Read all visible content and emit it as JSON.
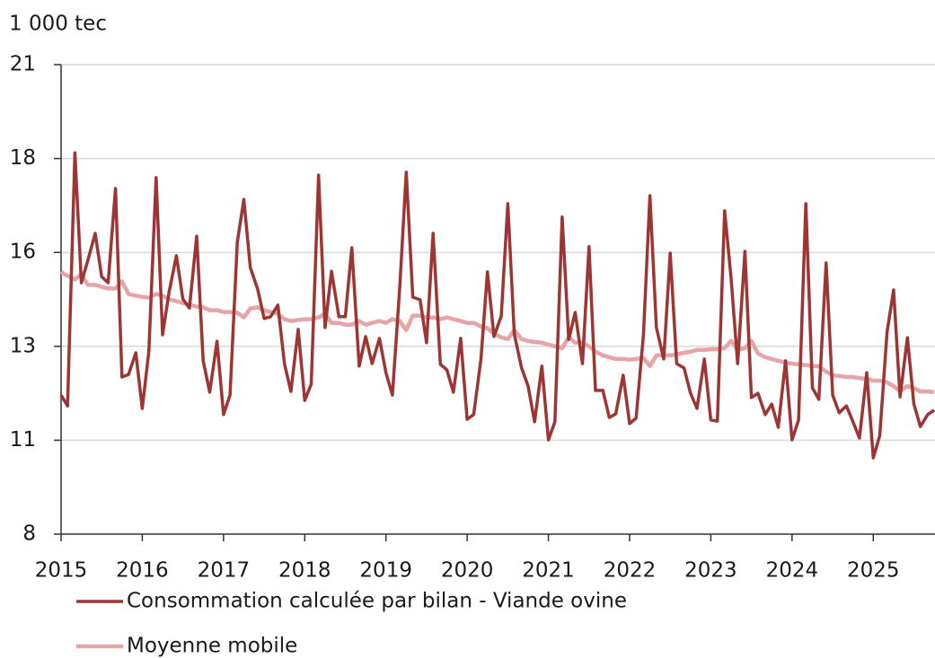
{
  "chart_data": {
    "type": "line",
    "ylabel": "1 000 tec",
    "x": [
      2015.0,
      2015.08,
      2015.17,
      2015.25,
      2015.33,
      2015.42,
      2015.5,
      2015.58,
      2015.67,
      2015.75,
      2015.83,
      2015.92,
      2016.0,
      2016.08,
      2016.17,
      2016.25,
      2016.33,
      2016.42,
      2016.5,
      2016.58,
      2016.67,
      2016.75,
      2016.83,
      2016.92,
      2017.0,
      2017.08,
      2017.17,
      2017.25,
      2017.33,
      2017.42,
      2017.5,
      2017.58,
      2017.67,
      2017.75,
      2017.83,
      2017.92,
      2018.0,
      2018.08,
      2018.17,
      2018.25,
      2018.33,
      2018.42,
      2018.5,
      2018.58,
      2018.67,
      2018.75,
      2018.83,
      2018.92,
      2019.0,
      2019.08,
      2019.17,
      2019.25,
      2019.33,
      2019.42,
      2019.5,
      2019.58,
      2019.67,
      2019.75,
      2019.83,
      2019.92,
      2020.0,
      2020.08,
      2020.17,
      2020.25,
      2020.33,
      2020.42,
      2020.5,
      2020.58,
      2020.67,
      2020.75,
      2020.83,
      2020.92,
      2021.0,
      2021.08,
      2021.17,
      2021.25,
      2021.33,
      2021.42,
      2021.5,
      2021.58,
      2021.67,
      2021.75,
      2021.83,
      2021.92,
      2022.0,
      2022.08,
      2022.17,
      2022.25,
      2022.33,
      2022.42,
      2022.5,
      2022.58,
      2022.67,
      2022.75,
      2022.83,
      2022.92,
      2023.0,
      2023.08,
      2023.17,
      2023.25,
      2023.33,
      2023.42,
      2023.5,
      2023.58,
      2023.67,
      2023.75,
      2023.83,
      2023.92,
      2024.0,
      2024.08,
      2024.17,
      2024.25,
      2024.33,
      2024.42,
      2024.5,
      2024.58,
      2024.67,
      2024.75,
      2024.83,
      2024.92,
      2025.0,
      2025.08,
      2025.17,
      2025.25,
      2025.33,
      2025.42,
      2025.5,
      2025.58,
      2025.67,
      2025.75
    ],
    "series": [
      {
        "name": "Consommation calculée par bilan - Viande ovine",
        "color": "#9e3535",
        "width": 3.5,
        "values": [
          11.85,
          11.55,
          18.56,
          14.96,
          15.58,
          16.33,
          15.13,
          14.96,
          17.57,
          12.35,
          12.42,
          13.02,
          11.48,
          13.05,
          17.87,
          13.52,
          14.71,
          15.71,
          14.51,
          14.26,
          16.25,
          12.8,
          11.93,
          13.34,
          11.31,
          11.85,
          16.08,
          17.27,
          15.38,
          14.79,
          13.97,
          14.02,
          14.34,
          12.72,
          11.95,
          13.67,
          11.7,
          12.15,
          17.94,
          13.72,
          15.28,
          14.02,
          14.02,
          15.93,
          12.65,
          13.47,
          12.72,
          13.42,
          12.47,
          11.85,
          14.84,
          18.02,
          14.56,
          14.49,
          13.3,
          16.33,
          12.7,
          12.55,
          11.93,
          13.42,
          11.18,
          11.31,
          12.85,
          15.26,
          13.47,
          14.04,
          17.15,
          13.54,
          12.6,
          12.1,
          11.11,
          12.65,
          10.61,
          11.11,
          16.78,
          13.39,
          14.14,
          12.72,
          15.96,
          11.98,
          11.98,
          11.23,
          11.33,
          12.4,
          11.06,
          11.21,
          13.52,
          17.37,
          13.72,
          12.85,
          15.78,
          12.72,
          12.6,
          11.9,
          11.48,
          12.85,
          11.16,
          11.13,
          16.95,
          15.08,
          12.72,
          15.83,
          11.78,
          11.9,
          11.31,
          11.6,
          10.96,
          12.8,
          10.61,
          11.16,
          17.15,
          12.05,
          11.73,
          15.51,
          11.85,
          11.36,
          11.55,
          11.11,
          10.66,
          12.47,
          10.11,
          10.73,
          13.59,
          14.76,
          11.8,
          13.44,
          11.6,
          10.98,
          11.31,
          11.43
        ]
      },
      {
        "name": "Moyenne mobile",
        "color": "#e6a4a4",
        "width": 4.5,
        "values": [
          15.26,
          15.15,
          15.05,
          15.2,
          14.9,
          14.9,
          14.85,
          14.8,
          14.8,
          15.0,
          14.65,
          14.6,
          14.57,
          14.55,
          14.65,
          14.6,
          14.5,
          14.45,
          14.4,
          14.35,
          14.3,
          14.28,
          14.2,
          14.2,
          14.15,
          14.15,
          14.13,
          14.0,
          14.25,
          14.28,
          14.2,
          14.15,
          14.1,
          13.95,
          13.9,
          13.93,
          13.95,
          13.95,
          14.0,
          14.1,
          13.85,
          13.85,
          13.8,
          13.8,
          13.9,
          13.8,
          13.85,
          13.9,
          13.85,
          13.95,
          13.9,
          13.65,
          14.05,
          14.05,
          14.0,
          14.0,
          13.95,
          14.0,
          13.95,
          13.9,
          13.85,
          13.85,
          13.75,
          13.7,
          13.55,
          13.45,
          13.4,
          13.65,
          13.4,
          13.35,
          13.32,
          13.3,
          13.25,
          13.2,
          13.15,
          13.45,
          13.3,
          13.3,
          13.2,
          13.05,
          12.95,
          12.9,
          12.85,
          12.85,
          12.83,
          12.85,
          12.88,
          12.65,
          12.95,
          12.95,
          12.95,
          12.98,
          13.02,
          13.05,
          13.1,
          13.1,
          13.12,
          13.12,
          13.15,
          13.35,
          13.1,
          13.15,
          13.35,
          13.0,
          12.9,
          12.85,
          12.8,
          12.75,
          12.72,
          12.7,
          12.68,
          12.65,
          12.65,
          12.5,
          12.4,
          12.38,
          12.35,
          12.35,
          12.32,
          12.3,
          12.25,
          12.25,
          12.2,
          12.1,
          11.95,
          12.1,
          12.05,
          11.95,
          11.95,
          11.93
        ]
      }
    ],
    "xlim": [
      2015,
      2025.76
    ],
    "xticks": [
      2015,
      2016,
      2017,
      2018,
      2019,
      2020,
      2021,
      2022,
      2023,
      2024,
      2025
    ],
    "ylim": [
      8,
      21
    ],
    "yticks": [
      8,
      {
        "value": 10.6,
        "label": "11"
      },
      {
        "value": 13.2,
        "label": "13"
      },
      {
        "value": 15.8,
        "label": "16"
      },
      {
        "value": 18.4,
        "label": "18"
      },
      21
    ],
    "grid": true,
    "legend": "bottom"
  }
}
